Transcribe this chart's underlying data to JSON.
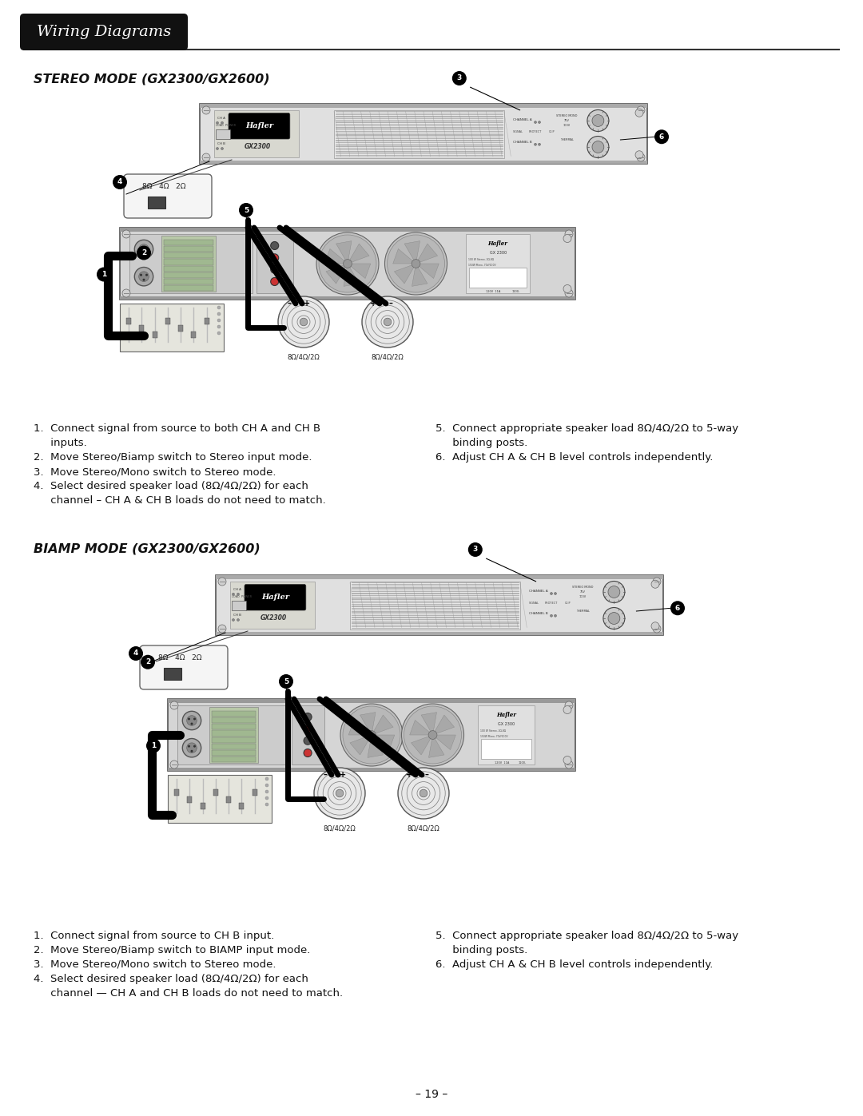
{
  "page_bg": "#ffffff",
  "page_width": 10.8,
  "page_height": 13.97,
  "header_bg": "#111111",
  "header_text": "Wiring Diagrams",
  "header_text_color": "#ffffff",
  "section1_title": "STEREO MODE (GX2300/GX2600)",
  "section2_title": "BIAMP MODE (GX2300/GX2600)",
  "stereo_bullets_left": [
    "1.  Connect signal from source to both CH A and CH B",
    "     inputs.",
    "2.  Move Stereo/Biamp switch to Stereo input mode.",
    "3.  Move Stereo/Mono switch to Stereo mode.",
    "4.  Select desired speaker load (8Ω/4Ω/2Ω) for each",
    "     channel – CH A & CH B loads do not need to match."
  ],
  "stereo_bullets_right": [
    "5.  Connect appropriate speaker load 8Ω/4Ω/2Ω to 5-way",
    "     binding posts.",
    "6.  Adjust CH A & CH B level controls independently."
  ],
  "biamp_bullets_left": [
    "1.  Connect signal from source to CH B input.",
    "2.  Move Stereo/Biamp switch to BIAMP input mode.",
    "3.  Move Stereo/Mono switch to Stereo mode.",
    "4.  Select desired speaker load (8Ω/4Ω/2Ω) for each",
    "     channel — CH A and CH B loads do not need to match."
  ],
  "biamp_bullets_right": [
    "5.  Connect appropriate speaker load 8Ω/4Ω/2Ω to 5-way",
    "     binding posts.",
    "6.  Adjust CH A & CH B level controls independently."
  ],
  "page_number": "– 19 –",
  "font_size_header": 14,
  "font_size_section_title": 11.5,
  "font_size_body": 9.5
}
